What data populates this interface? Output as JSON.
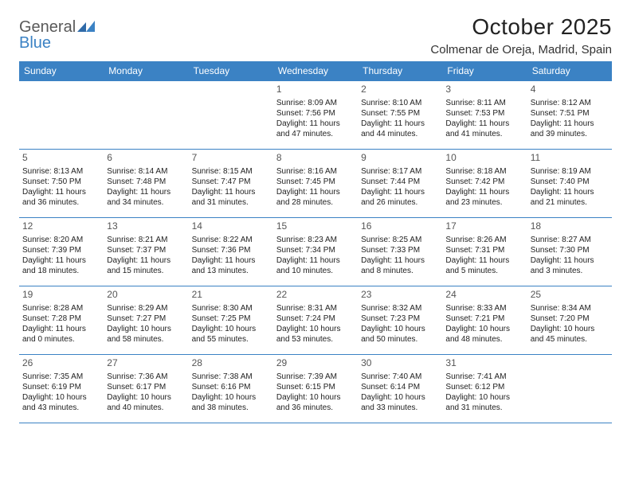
{
  "brand": {
    "name_part1": "General",
    "name_part2": "Blue"
  },
  "header": {
    "month_title": "October 2025",
    "location": "Colmenar de Oreja, Madrid, Spain"
  },
  "colors": {
    "accent": "#3b82c4",
    "header_text": "#ffffff",
    "body_text": "#222222",
    "muted_text": "#555555",
    "background": "#ffffff"
  },
  "calendar": {
    "day_headers": [
      "Sunday",
      "Monday",
      "Tuesday",
      "Wednesday",
      "Thursday",
      "Friday",
      "Saturday"
    ],
    "weeks": [
      [
        null,
        null,
        null,
        {
          "day": "1",
          "sunrise": "8:09 AM",
          "sunset": "7:56 PM",
          "daylight": "11 hours and 47 minutes."
        },
        {
          "day": "2",
          "sunrise": "8:10 AM",
          "sunset": "7:55 PM",
          "daylight": "11 hours and 44 minutes."
        },
        {
          "day": "3",
          "sunrise": "8:11 AM",
          "sunset": "7:53 PM",
          "daylight": "11 hours and 41 minutes."
        },
        {
          "day": "4",
          "sunrise": "8:12 AM",
          "sunset": "7:51 PM",
          "daylight": "11 hours and 39 minutes."
        }
      ],
      [
        {
          "day": "5",
          "sunrise": "8:13 AM",
          "sunset": "7:50 PM",
          "daylight": "11 hours and 36 minutes."
        },
        {
          "day": "6",
          "sunrise": "8:14 AM",
          "sunset": "7:48 PM",
          "daylight": "11 hours and 34 minutes."
        },
        {
          "day": "7",
          "sunrise": "8:15 AM",
          "sunset": "7:47 PM",
          "daylight": "11 hours and 31 minutes."
        },
        {
          "day": "8",
          "sunrise": "8:16 AM",
          "sunset": "7:45 PM",
          "daylight": "11 hours and 28 minutes."
        },
        {
          "day": "9",
          "sunrise": "8:17 AM",
          "sunset": "7:44 PM",
          "daylight": "11 hours and 26 minutes."
        },
        {
          "day": "10",
          "sunrise": "8:18 AM",
          "sunset": "7:42 PM",
          "daylight": "11 hours and 23 minutes."
        },
        {
          "day": "11",
          "sunrise": "8:19 AM",
          "sunset": "7:40 PM",
          "daylight": "11 hours and 21 minutes."
        }
      ],
      [
        {
          "day": "12",
          "sunrise": "8:20 AM",
          "sunset": "7:39 PM",
          "daylight": "11 hours and 18 minutes."
        },
        {
          "day": "13",
          "sunrise": "8:21 AM",
          "sunset": "7:37 PM",
          "daylight": "11 hours and 15 minutes."
        },
        {
          "day": "14",
          "sunrise": "8:22 AM",
          "sunset": "7:36 PM",
          "daylight": "11 hours and 13 minutes."
        },
        {
          "day": "15",
          "sunrise": "8:23 AM",
          "sunset": "7:34 PM",
          "daylight": "11 hours and 10 minutes."
        },
        {
          "day": "16",
          "sunrise": "8:25 AM",
          "sunset": "7:33 PM",
          "daylight": "11 hours and 8 minutes."
        },
        {
          "day": "17",
          "sunrise": "8:26 AM",
          "sunset": "7:31 PM",
          "daylight": "11 hours and 5 minutes."
        },
        {
          "day": "18",
          "sunrise": "8:27 AM",
          "sunset": "7:30 PM",
          "daylight": "11 hours and 3 minutes."
        }
      ],
      [
        {
          "day": "19",
          "sunrise": "8:28 AM",
          "sunset": "7:28 PM",
          "daylight": "11 hours and 0 minutes."
        },
        {
          "day": "20",
          "sunrise": "8:29 AM",
          "sunset": "7:27 PM",
          "daylight": "10 hours and 58 minutes."
        },
        {
          "day": "21",
          "sunrise": "8:30 AM",
          "sunset": "7:25 PM",
          "daylight": "10 hours and 55 minutes."
        },
        {
          "day": "22",
          "sunrise": "8:31 AM",
          "sunset": "7:24 PM",
          "daylight": "10 hours and 53 minutes."
        },
        {
          "day": "23",
          "sunrise": "8:32 AM",
          "sunset": "7:23 PM",
          "daylight": "10 hours and 50 minutes."
        },
        {
          "day": "24",
          "sunrise": "8:33 AM",
          "sunset": "7:21 PM",
          "daylight": "10 hours and 48 minutes."
        },
        {
          "day": "25",
          "sunrise": "8:34 AM",
          "sunset": "7:20 PM",
          "daylight": "10 hours and 45 minutes."
        }
      ],
      [
        {
          "day": "26",
          "sunrise": "7:35 AM",
          "sunset": "6:19 PM",
          "daylight": "10 hours and 43 minutes."
        },
        {
          "day": "27",
          "sunrise": "7:36 AM",
          "sunset": "6:17 PM",
          "daylight": "10 hours and 40 minutes."
        },
        {
          "day": "28",
          "sunrise": "7:38 AM",
          "sunset": "6:16 PM",
          "daylight": "10 hours and 38 minutes."
        },
        {
          "day": "29",
          "sunrise": "7:39 AM",
          "sunset": "6:15 PM",
          "daylight": "10 hours and 36 minutes."
        },
        {
          "day": "30",
          "sunrise": "7:40 AM",
          "sunset": "6:14 PM",
          "daylight": "10 hours and 33 minutes."
        },
        {
          "day": "31",
          "sunrise": "7:41 AM",
          "sunset": "6:12 PM",
          "daylight": "10 hours and 31 minutes."
        },
        null
      ]
    ],
    "labels": {
      "sunrise": "Sunrise:",
      "sunset": "Sunset:",
      "daylight": "Daylight:"
    }
  }
}
